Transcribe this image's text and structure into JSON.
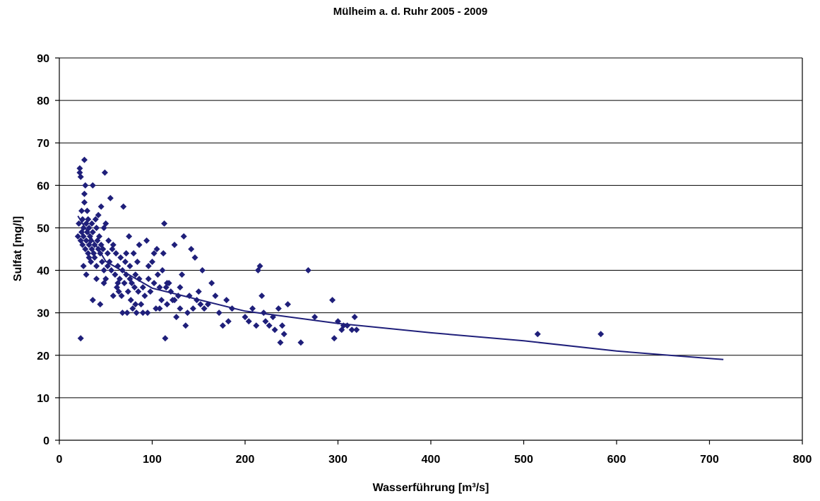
{
  "chart_data": {
    "type": "scatter",
    "title": "Mülheim a. d. Ruhr 2005 - 2009",
    "xlabel": "Wasserführung [m³/s]",
    "ylabel": "Sulfat [mg/l]",
    "xlim": [
      0,
      800
    ],
    "ylim": [
      0,
      90
    ],
    "x_ticks": [
      "0",
      "100",
      "200",
      "300",
      "400",
      "500",
      "600",
      "700",
      "800"
    ],
    "y_ticks": [
      "0",
      "10",
      "20",
      "30",
      "40",
      "50",
      "60",
      "70",
      "80",
      "90"
    ],
    "grid": "horizontal",
    "legend": "none",
    "series": [
      {
        "marker": "diamond",
        "color": "#1f1f7a",
        "points": [
          [
            20,
            48
          ],
          [
            21,
            51
          ],
          [
            22,
            64
          ],
          [
            22,
            63
          ],
          [
            23,
            62
          ],
          [
            23,
            47
          ],
          [
            24,
            49
          ],
          [
            24,
            54
          ],
          [
            25,
            52
          ],
          [
            25,
            46
          ],
          [
            26,
            50
          ],
          [
            26,
            48
          ],
          [
            27,
            66
          ],
          [
            27,
            58
          ],
          [
            27,
            56
          ],
          [
            28,
            60
          ],
          [
            28,
            45
          ],
          [
            29,
            51
          ],
          [
            29,
            47
          ],
          [
            30,
            54
          ],
          [
            30,
            49
          ],
          [
            31,
            52
          ],
          [
            31,
            44
          ],
          [
            32,
            50
          ],
          [
            32,
            46
          ],
          [
            33,
            48
          ],
          [
            34,
            47
          ],
          [
            34,
            42
          ],
          [
            35,
            51
          ],
          [
            35,
            45
          ],
          [
            36,
            49
          ],
          [
            36,
            60
          ],
          [
            37,
            44
          ],
          [
            38,
            46
          ],
          [
            38,
            43
          ],
          [
            39,
            52
          ],
          [
            40,
            50
          ],
          [
            40,
            41
          ],
          [
            41,
            47
          ],
          [
            42,
            45
          ],
          [
            42,
            53
          ],
          [
            43,
            48
          ],
          [
            44,
            44
          ],
          [
            45,
            46
          ],
          [
            45,
            55
          ],
          [
            46,
            42
          ],
          [
            47,
            45
          ],
          [
            48,
            50
          ],
          [
            48,
            40
          ],
          [
            49,
            63
          ],
          [
            50,
            51
          ],
          [
            50,
            38
          ],
          [
            52,
            44
          ],
          [
            53,
            47
          ],
          [
            54,
            42
          ],
          [
            55,
            57
          ],
          [
            56,
            40
          ],
          [
            57,
            45
          ],
          [
            58,
            46
          ],
          [
            60,
            39
          ],
          [
            61,
            44
          ],
          [
            62,
            36
          ],
          [
            63,
            41
          ],
          [
            64,
            35
          ],
          [
            65,
            38
          ],
          [
            66,
            43
          ],
          [
            67,
            34
          ],
          [
            68,
            40
          ],
          [
            69,
            55
          ],
          [
            70,
            37
          ],
          [
            71,
            42
          ],
          [
            72,
            39
          ],
          [
            73,
            30
          ],
          [
            74,
            35
          ],
          [
            75,
            48
          ],
          [
            76,
            41
          ],
          [
            77,
            33
          ],
          [
            78,
            37
          ],
          [
            79,
            31
          ],
          [
            80,
            44
          ],
          [
            81,
            36
          ],
          [
            82,
            39
          ],
          [
            83,
            30
          ],
          [
            84,
            42
          ],
          [
            85,
            35
          ],
          [
            86,
            38
          ],
          [
            88,
            32
          ],
          [
            90,
            36
          ],
          [
            92,
            34
          ],
          [
            94,
            47
          ],
          [
            95,
            30
          ],
          [
            96,
            38
          ],
          [
            98,
            35
          ],
          [
            100,
            42
          ],
          [
            102,
            37
          ],
          [
            104,
            31
          ],
          [
            105,
            45
          ],
          [
            106,
            39
          ],
          [
            108,
            36
          ],
          [
            110,
            33
          ],
          [
            111,
            40
          ],
          [
            112,
            44
          ],
          [
            113,
            51
          ],
          [
            114,
            24
          ],
          [
            115,
            36
          ],
          [
            116,
            32
          ],
          [
            118,
            37
          ],
          [
            120,
            35
          ],
          [
            122,
            33
          ],
          [
            124,
            46
          ],
          [
            126,
            29
          ],
          [
            128,
            34
          ],
          [
            130,
            31
          ],
          [
            132,
            39
          ],
          [
            134,
            48
          ],
          [
            136,
            27
          ],
          [
            138,
            30
          ],
          [
            140,
            34
          ],
          [
            142,
            45
          ],
          [
            144,
            31
          ],
          [
            146,
            43
          ],
          [
            148,
            33
          ],
          [
            150,
            35
          ],
          [
            152,
            32
          ],
          [
            154,
            40
          ],
          [
            156,
            31
          ],
          [
            160,
            32
          ],
          [
            164,
            37
          ],
          [
            168,
            34
          ],
          [
            172,
            30
          ],
          [
            176,
            27
          ],
          [
            180,
            33
          ],
          [
            182,
            28
          ],
          [
            186,
            31
          ],
          [
            200,
            29
          ],
          [
            204,
            28
          ],
          [
            208,
            31
          ],
          [
            212,
            27
          ],
          [
            214,
            40
          ],
          [
            216,
            41
          ],
          [
            218,
            34
          ],
          [
            220,
            30
          ],
          [
            222,
            28
          ],
          [
            226,
            27
          ],
          [
            230,
            29
          ],
          [
            232,
            26
          ],
          [
            236,
            31
          ],
          [
            238,
            23
          ],
          [
            240,
            27
          ],
          [
            242,
            25
          ],
          [
            246,
            32
          ],
          [
            260,
            23
          ],
          [
            268,
            40
          ],
          [
            275,
            29
          ],
          [
            294,
            33
          ],
          [
            296,
            24
          ],
          [
            300,
            28
          ],
          [
            304,
            26
          ],
          [
            306,
            27
          ],
          [
            310,
            27
          ],
          [
            315,
            26
          ],
          [
            318,
            29
          ],
          [
            320,
            26
          ],
          [
            23,
            24
          ],
          [
            26,
            41
          ],
          [
            29,
            39
          ],
          [
            32,
            43
          ],
          [
            36,
            33
          ],
          [
            40,
            38
          ],
          [
            44,
            32
          ],
          [
            48,
            37
          ],
          [
            52,
            41
          ],
          [
            58,
            34
          ],
          [
            63,
            37
          ],
          [
            68,
            30
          ],
          [
            72,
            44
          ],
          [
            76,
            38
          ],
          [
            82,
            32
          ],
          [
            86,
            46
          ],
          [
            90,
            30
          ],
          [
            96,
            41
          ],
          [
            102,
            44
          ],
          [
            108,
            31
          ],
          [
            116,
            37
          ],
          [
            124,
            33
          ],
          [
            130,
            36
          ],
          [
            515,
            25
          ],
          [
            583,
            25
          ]
        ]
      }
    ],
    "trendline": {
      "type": "power",
      "x_range": [
        20,
        715
      ],
      "points": [
        [
          20,
          52.8
        ],
        [
          50,
          42.1
        ],
        [
          100,
          35.8
        ],
        [
          200,
          30.4
        ],
        [
          300,
          27.5
        ],
        [
          400,
          25.3
        ],
        [
          500,
          23.4
        ],
        [
          600,
          21.0
        ],
        [
          715,
          19.0
        ]
      ]
    }
  }
}
